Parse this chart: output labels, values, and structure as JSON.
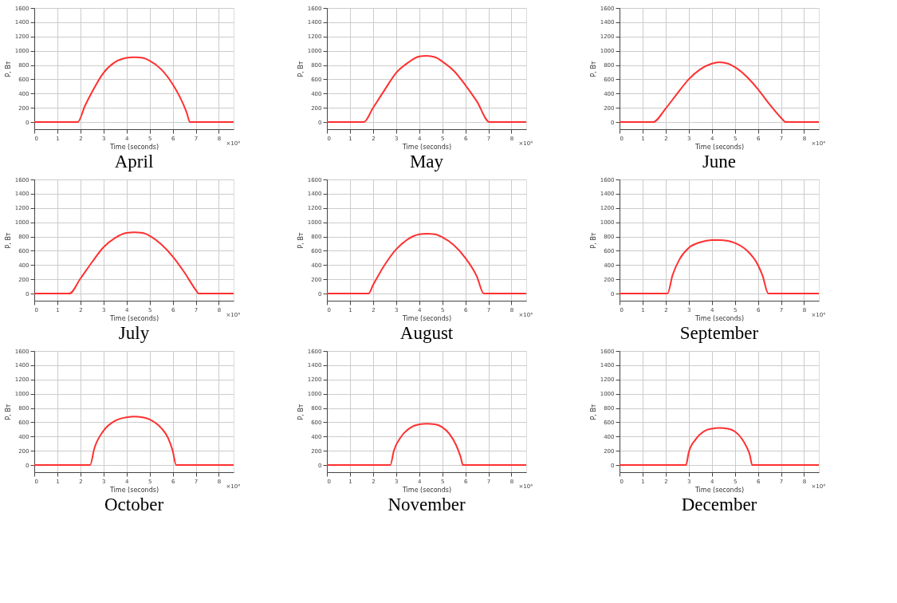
{
  "chart_data": [
    {
      "type": "line",
      "title": "April",
      "xlabel": "Time (seconds)",
      "ylabel": "P, Вт",
      "annotations": [
        "×10⁴"
      ],
      "xlim": [
        0,
        8.64
      ],
      "ylim": [
        -100,
        1600
      ],
      "xticks": [
        0,
        1,
        2,
        3,
        4,
        5,
        6,
        7,
        8
      ],
      "yticks": [
        0,
        200,
        400,
        600,
        800,
        1000,
        1200,
        1400,
        1600
      ],
      "grid": true,
      "marker": "none",
      "line_style": "solid",
      "series": [
        {
          "color": "#ff3030",
          "x": [
            0,
            1.88,
            2.2,
            2.5,
            3.0,
            3.5,
            4.0,
            4.32,
            4.7,
            5.0,
            5.5,
            6.0,
            6.3,
            6.6,
            6.75,
            8.64
          ],
          "values": [
            0,
            0,
            230,
            420,
            690,
            840,
            900,
            910,
            900,
            860,
            740,
            530,
            360,
            140,
            0,
            0
          ]
        }
      ]
    },
    {
      "type": "line",
      "title": "May",
      "xlabel": "Time (seconds)",
      "ylabel": "P, Вт",
      "annotations": [
        "×10⁴"
      ],
      "xlim": [
        0,
        8.64
      ],
      "ylim": [
        -100,
        1600
      ],
      "xticks": [
        0,
        1,
        2,
        3,
        4,
        5,
        6,
        7,
        8
      ],
      "yticks": [
        0,
        200,
        400,
        600,
        800,
        1000,
        1200,
        1400,
        1600
      ],
      "grid": true,
      "marker": "none",
      "line_style": "solid",
      "series": [
        {
          "color": "#ff3030",
          "x": [
            0,
            1.6,
            2,
            2.5,
            3,
            3.5,
            4,
            4.32,
            4.7,
            5,
            5.5,
            6,
            6.5,
            7.05,
            8.64
          ],
          "values": [
            0,
            0,
            200,
            450,
            690,
            830,
            920,
            930,
            910,
            850,
            720,
            520,
            290,
            0,
            0
          ]
        }
      ]
    },
    {
      "type": "line",
      "title": "June",
      "xlabel": "Time (seconds)",
      "ylabel": "P, Вт",
      "annotations": [
        "×10⁴"
      ],
      "xlim": [
        0,
        8.64
      ],
      "ylim": [
        -100,
        1600
      ],
      "xticks": [
        0,
        1,
        2,
        3,
        4,
        5,
        6,
        7,
        8
      ],
      "yticks": [
        0,
        200,
        400,
        600,
        800,
        1000,
        1200,
        1400,
        1600
      ],
      "grid": true,
      "marker": "none",
      "line_style": "solid",
      "series": [
        {
          "color": "#ff3030",
          "x": [
            0,
            1.45,
            2,
            2.5,
            3,
            3.5,
            4,
            4.32,
            4.7,
            5,
            5.5,
            6,
            6.5,
            7,
            7.2,
            8.64
          ],
          "values": [
            0,
            0,
            190,
            400,
            600,
            740,
            820,
            840,
            820,
            770,
            640,
            460,
            250,
            60,
            0,
            0
          ]
        }
      ]
    },
    {
      "type": "line",
      "title": "July",
      "xlabel": "Time (seconds)",
      "ylabel": "P, Вт",
      "annotations": [
        "×10⁴"
      ],
      "xlim": [
        0,
        8.64
      ],
      "ylim": [
        -100,
        1600
      ],
      "xticks": [
        0,
        1,
        2,
        3,
        4,
        5,
        6,
        7,
        8
      ],
      "yticks": [
        0,
        200,
        400,
        600,
        800,
        1000,
        1200,
        1400,
        1600
      ],
      "grid": true,
      "marker": "none",
      "line_style": "solid",
      "series": [
        {
          "color": "#ff3030",
          "x": [
            0,
            1.52,
            2,
            2.5,
            3,
            3.5,
            4,
            4.32,
            4.7,
            5,
            5.5,
            6,
            6.5,
            7,
            7.12,
            8.64
          ],
          "values": [
            0,
            0,
            210,
            440,
            650,
            780,
            850,
            860,
            850,
            810,
            690,
            520,
            300,
            50,
            0,
            0
          ]
        }
      ]
    },
    {
      "type": "line",
      "title": "August",
      "xlabel": "Time (seconds)",
      "ylabel": "P, Вт",
      "annotations": [
        "×10⁴"
      ],
      "xlim": [
        0,
        8.64
      ],
      "ylim": [
        -100,
        1600
      ],
      "xticks": [
        0,
        1,
        2,
        3,
        4,
        5,
        6,
        7,
        8
      ],
      "yticks": [
        0,
        200,
        400,
        600,
        800,
        1000,
        1200,
        1400,
        1600
      ],
      "grid": true,
      "marker": "none",
      "line_style": "solid",
      "series": [
        {
          "color": "#ff3030",
          "x": [
            0,
            1.8,
            2,
            2.5,
            3,
            3.5,
            4,
            4.32,
            4.7,
            5,
            5.5,
            6,
            6.5,
            6.8,
            8.64
          ],
          "values": [
            0,
            0,
            120,
            400,
            620,
            760,
            830,
            840,
            830,
            790,
            680,
            500,
            240,
            0,
            0
          ]
        }
      ]
    },
    {
      "type": "line",
      "title": "September",
      "xlabel": "Time (seconds)",
      "ylabel": "P, Вт",
      "annotations": [
        "×10⁴"
      ],
      "xlim": [
        0,
        8.64
      ],
      "ylim": [
        -100,
        1600
      ],
      "xticks": [
        0,
        1,
        2,
        3,
        4,
        5,
        6,
        7,
        8
      ],
      "yticks": [
        0,
        200,
        400,
        600,
        800,
        1000,
        1200,
        1400,
        1600
      ],
      "grid": true,
      "marker": "none",
      "line_style": "solid",
      "series": [
        {
          "color": "#ff3030",
          "x": [
            0,
            2.08,
            2.3,
            2.6,
            3,
            3.5,
            4,
            4.32,
            4.7,
            5,
            5.5,
            6,
            6.2,
            6.45,
            8.64
          ],
          "values": [
            0,
            0,
            260,
            480,
            640,
            720,
            750,
            750,
            740,
            710,
            610,
            400,
            250,
            0,
            0
          ]
        }
      ]
    },
    {
      "type": "line",
      "title": "October",
      "xlabel": "Time (seconds)",
      "ylabel": "P, Вт",
      "annotations": [
        "×10⁴"
      ],
      "xlim": [
        0,
        8.64
      ],
      "ylim": [
        -100,
        1600
      ],
      "xticks": [
        0,
        1,
        2,
        3,
        4,
        5,
        6,
        7,
        8
      ],
      "yticks": [
        0,
        200,
        400,
        600,
        800,
        1000,
        1200,
        1400,
        1600
      ],
      "grid": true,
      "marker": "none",
      "line_style": "solid",
      "series": [
        {
          "color": "#ff3030",
          "x": [
            0,
            2.42,
            2.6,
            3,
            3.5,
            4,
            4.32,
            4.7,
            5,
            5.5,
            5.8,
            6.0,
            6.15,
            8.64
          ],
          "values": [
            0,
            0,
            230,
            480,
            620,
            670,
            680,
            670,
            640,
            520,
            380,
            200,
            0,
            0
          ]
        }
      ]
    },
    {
      "type": "line",
      "title": "November",
      "xlabel": "Time (seconds)",
      "ylabel": "P, Вт",
      "annotations": [
        "×10⁴"
      ],
      "xlim": [
        0,
        8.64
      ],
      "ylim": [
        -100,
        1600
      ],
      "xticks": [
        0,
        1,
        2,
        3,
        4,
        5,
        6,
        7,
        8
      ],
      "yticks": [
        0,
        200,
        400,
        600,
        800,
        1000,
        1200,
        1400,
        1600
      ],
      "grid": true,
      "marker": "none",
      "line_style": "solid",
      "series": [
        {
          "color": "#ff3030",
          "x": [
            0,
            2.75,
            2.9,
            3.2,
            3.6,
            4,
            4.32,
            4.7,
            5,
            5.3,
            5.6,
            5.8,
            5.9,
            8.64
          ],
          "values": [
            0,
            0,
            200,
            390,
            520,
            570,
            580,
            570,
            530,
            440,
            280,
            110,
            0,
            0
          ]
        }
      ]
    },
    {
      "type": "line",
      "title": "December",
      "xlabel": "Time (seconds)",
      "ylabel": "P, Вт",
      "annotations": [
        "×10⁴"
      ],
      "xlim": [
        0,
        8.64
      ],
      "ylim": [
        -100,
        1600
      ],
      "xticks": [
        0,
        1,
        2,
        3,
        4,
        5,
        6,
        7,
        8
      ],
      "yticks": [
        0,
        200,
        400,
        600,
        800,
        1000,
        1200,
        1400,
        1600
      ],
      "grid": true,
      "marker": "none",
      "line_style": "solid",
      "series": [
        {
          "color": "#ff3030",
          "x": [
            0,
            2.88,
            3.0,
            3.3,
            3.7,
            4,
            4.32,
            4.7,
            5,
            5.3,
            5.5,
            5.65,
            5.75,
            8.64
          ],
          "values": [
            0,
            0,
            180,
            360,
            480,
            510,
            520,
            510,
            470,
            370,
            260,
            140,
            0,
            0
          ]
        }
      ]
    }
  ]
}
